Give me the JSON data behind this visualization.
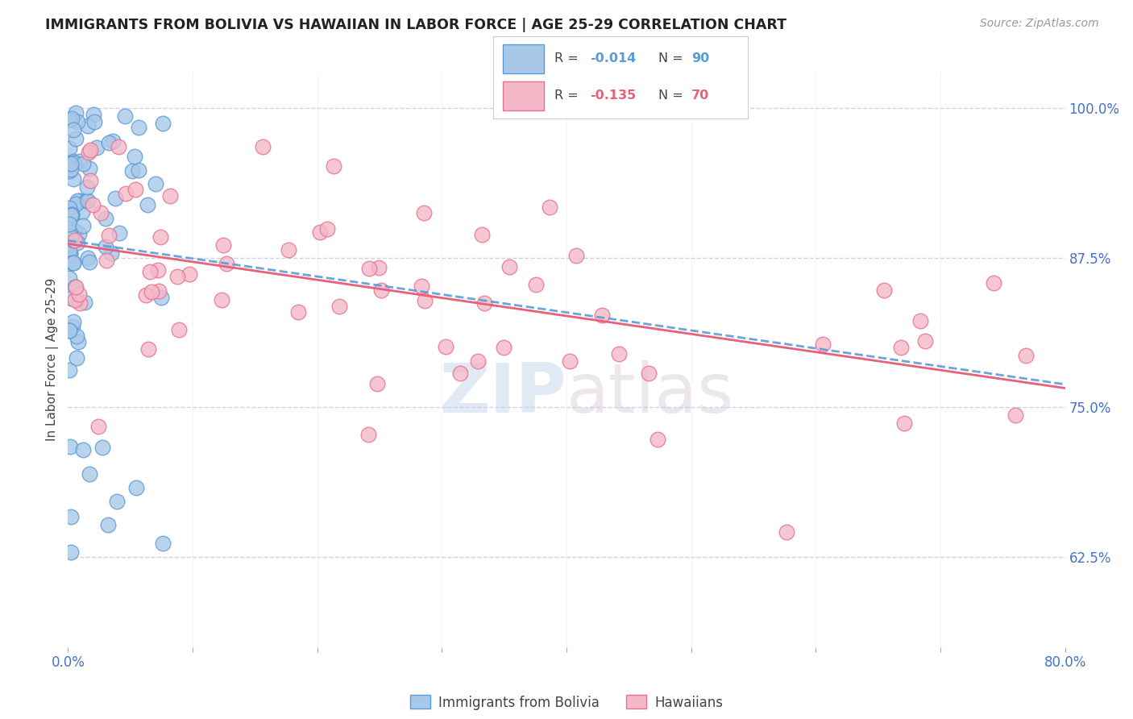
{
  "title": "IMMIGRANTS FROM BOLIVIA VS HAWAIIAN IN LABOR FORCE | AGE 25-29 CORRELATION CHART",
  "source": "Source: ZipAtlas.com",
  "ylabel": "In Labor Force | Age 25-29",
  "xmin": 0.0,
  "xmax": 0.8,
  "ymin": 0.55,
  "ymax": 1.03,
  "yticks": [
    0.625,
    0.75,
    0.875,
    1.0
  ],
  "ytick_labels": [
    "62.5%",
    "75.0%",
    "87.5%",
    "100.0%"
  ],
  "xticks": [
    0.0,
    0.1,
    0.2,
    0.3,
    0.4,
    0.5,
    0.6,
    0.7,
    0.8
  ],
  "xtick_labels": [
    "0.0%",
    "",
    "",
    "",
    "",
    "",
    "",
    "",
    "80.0%"
  ],
  "blue_R": -0.014,
  "blue_N": 90,
  "pink_R": -0.135,
  "pink_N": 70,
  "blue_color": "#a8c8e8",
  "blue_edge": "#5b9bd5",
  "pink_color": "#f4b8c8",
  "pink_edge": "#e87090",
  "blue_line_color": "#5b9bd5",
  "pink_line_color": "#e8607a",
  "label_blue": "Immigrants from Bolivia",
  "label_pink": "Hawaiians",
  "watermark": "ZIPatlas",
  "background_color": "#ffffff",
  "title_color": "#222222",
  "source_color": "#999999",
  "axis_color": "#4472c4",
  "grid_color": "#c8d4e8",
  "seed": 12
}
